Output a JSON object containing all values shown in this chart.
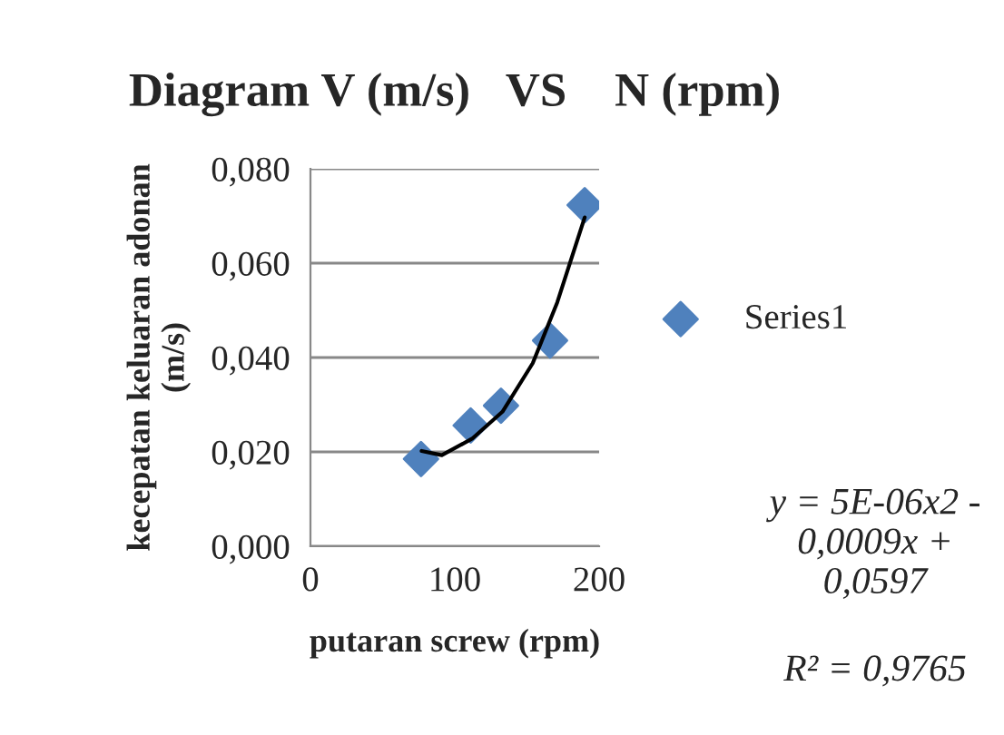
{
  "chart_data": {
    "type": "scatter",
    "title": "Diagram V (m/s)   VS    N (rpm)",
    "xlabel": "putaran screw (rpm)",
    "ylabel": "kecepatan keluaran adonan\n(m/s)",
    "series": [
      {
        "name": "Series1",
        "color": "#4f81bd",
        "marker": "diamond",
        "x": [
          76.6,
          111,
          132,
          166,
          190
        ],
        "values": [
          0.0185,
          0.0256,
          0.0298,
          0.0436,
          0.0723
        ]
      },
      {
        "type": "line",
        "color": "#000000",
        "marker": "none",
        "line_style": "solid",
        "x": [
          77,
          91,
          112,
          133,
          154,
          171,
          190
        ],
        "values": [
          0.0202,
          0.0193,
          0.0228,
          0.0285,
          0.0388,
          0.0517,
          0.0697
        ]
      }
    ],
    "xlim": [
      0,
      200
    ],
    "xticks": [
      0,
      100,
      200
    ],
    "ylim": [
      0,
      0.08
    ],
    "yticks": [
      {
        "value": 0,
        "label": "0,000"
      },
      {
        "value": 0.02,
        "label": "0,020"
      },
      {
        "value": 0.04,
        "label": "0,040"
      },
      {
        "value": 0.06,
        "label": "0,060"
      },
      {
        "value": 0.08,
        "label": "0,080"
      }
    ],
    "grid": "y",
    "legend": "right",
    "annotations": [
      "y = 5E-06x2 - 0,0009x + 0,0597",
      "R² = 0,9765"
    ]
  }
}
